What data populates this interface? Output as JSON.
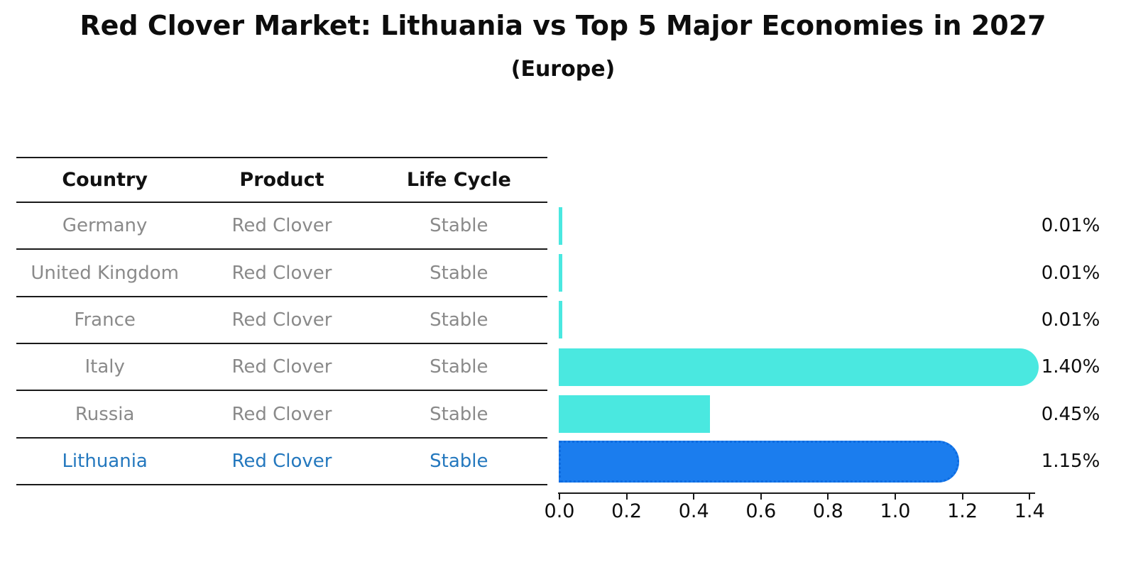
{
  "title": "Red Clover Market: Lithuania vs Top 5 Major Economies in 2027",
  "subtitle": "(Europe)",
  "table": {
    "headers": [
      "Country",
      "Product",
      "Life Cycle"
    ],
    "rows": [
      {
        "country": "Germany",
        "product": "Red Clover",
        "life_cycle": "Stable",
        "highlighted": false
      },
      {
        "country": "United Kingdom",
        "product": "Red Clover",
        "life_cycle": "Stable",
        "highlighted": false
      },
      {
        "country": "France",
        "product": "Red Clover",
        "life_cycle": "Stable",
        "highlighted": false
      },
      {
        "country": "Italy",
        "product": "Red Clover",
        "life_cycle": "Stable",
        "highlighted": false
      },
      {
        "country": "Russia",
        "product": "Red Clover",
        "life_cycle": "Stable",
        "highlighted": false
      },
      {
        "country": "Lithuania",
        "product": "Red Clover",
        "life_cycle": "Stable",
        "highlighted": true
      }
    ]
  },
  "chart_data": {
    "type": "bar",
    "orientation": "horizontal",
    "title": "Red Clover Market: Lithuania vs Top 5 Major Economies in 2027",
    "subtitle": "(Europe)",
    "categories": [
      "Germany",
      "United Kingdom",
      "France",
      "Italy",
      "Russia",
      "Lithuania"
    ],
    "values": [
      0.01,
      0.01,
      0.01,
      1.4,
      0.45,
      1.15
    ],
    "value_labels": [
      "0.01%",
      "0.01%",
      "0.01%",
      "1.40%",
      "0.45%",
      "1.15%"
    ],
    "highlight_category": "Lithuania",
    "xlabel": "",
    "ylabel": "",
    "xlim": [
      0.0,
      1.45
    ],
    "xticks": [
      0.0,
      0.2,
      0.4,
      0.6,
      0.8,
      1.0,
      1.2,
      1.4
    ],
    "xtick_labels": [
      "0.0",
      "0.2",
      "0.4",
      "0.6",
      "0.8",
      "1.0",
      "1.2",
      "1.4"
    ],
    "grid": false,
    "legend": false,
    "colors": {
      "default_bar": "#4ae8e0",
      "highlight_bar": "#1b7dee",
      "highlight_bar_border": "#0d6be0",
      "highlight_text": "#2478be",
      "row_text": "#8a8a8a",
      "header_text": "#111111",
      "value_text": "#0d0d0d"
    }
  }
}
